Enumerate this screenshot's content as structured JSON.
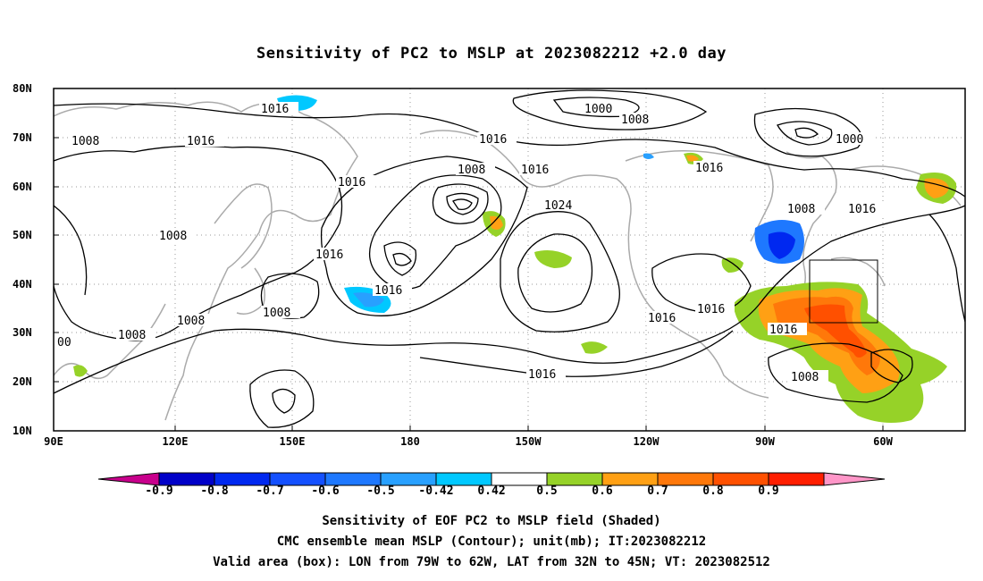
{
  "title": "Sensitivity of PC2 to MSLP at 2023082212 +2.0 day",
  "lat_labels": [
    "80N",
    "70N",
    "60N",
    "50N",
    "40N",
    "30N",
    "20N",
    "10N"
  ],
  "lon_labels": [
    "90E",
    "120E",
    "150E",
    "180",
    "150W",
    "120W",
    "90W",
    "60W"
  ],
  "contour_labels": [
    "1016",
    "1000",
    "1008",
    "1008",
    "1016",
    "1016",
    "1000",
    "1008",
    "1016",
    "1016",
    "1008",
    "1016",
    "1024",
    "1016",
    "1008",
    "1016",
    "1016",
    "1008",
    "1016",
    "1008",
    "1016",
    "1016",
    "1008",
    "1016",
    "1008",
    "00"
  ],
  "colorbar": {
    "labels": [
      "-0.9",
      "-0.8",
      "-0.7",
      "-0.6",
      "-0.5",
      "-0.42",
      "0.42",
      "0.5",
      "0.6",
      "0.7",
      "0.8",
      "0.9"
    ],
    "colors": [
      "#c8008c",
      "#0000c8",
      "#0028f0",
      "#1450ff",
      "#1e78ff",
      "#28a0ff",
      "#00c8ff",
      "#ffffff",
      "#96d228",
      "#ffa014",
      "#ff780a",
      "#ff5000",
      "#ff1e00",
      "#ff96c8"
    ]
  },
  "captions": [
    "Sensitivity of EOF PC2 to MSLP field (Shaded)",
    "CMC ensemble mean MSLP (Contour); unit(mb); IT:2023082212",
    "Valid area (box): LON from 79W to 62W, LAT from 32N to 45N; VT: 2023082512"
  ]
}
